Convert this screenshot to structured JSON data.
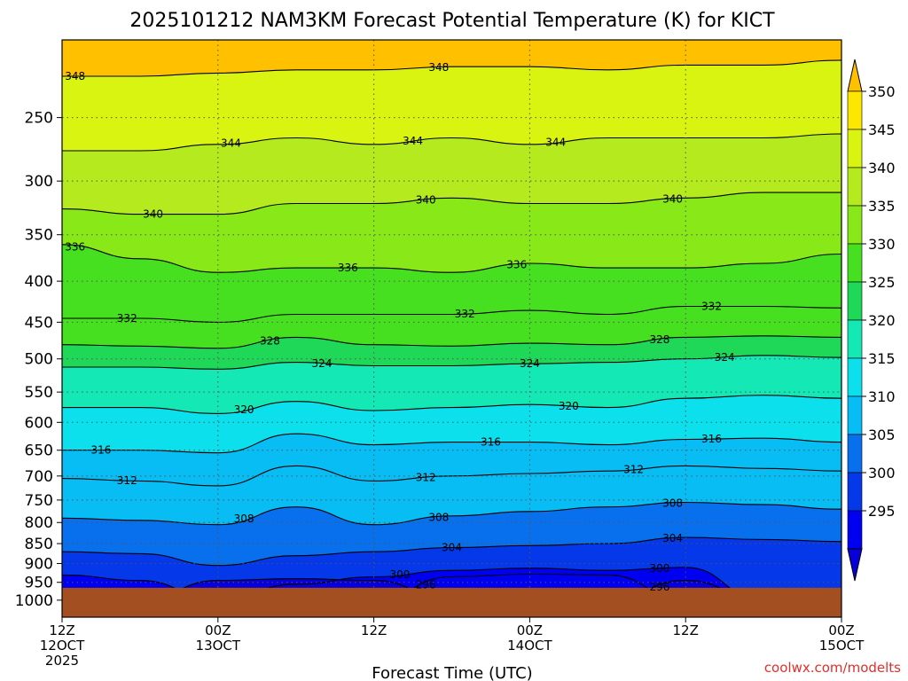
{
  "chart_data": {
    "type": "heatmap",
    "title": "2025101212 NAM3KM Forecast Potential Temperature (K) for KICT",
    "xlabel": "Forecast Time (UTC)",
    "ylabel": "",
    "credit": "coolwx.com/modelts",
    "y_axis": {
      "scale": "log-pressure",
      "reversed": true,
      "range_hPa": [
        200,
        1050
      ],
      "ticks": [
        "250",
        "300",
        "350",
        "400",
        "450",
        "500",
        "550",
        "600",
        "650",
        "700",
        "750",
        "800",
        "850",
        "900",
        "950",
        "1000"
      ],
      "tick_values": [
        250,
        300,
        350,
        400,
        450,
        500,
        550,
        600,
        650,
        700,
        750,
        800,
        850,
        900,
        950,
        1000
      ]
    },
    "x_axis": {
      "range_hours": [
        0,
        60
      ],
      "ticks": [
        {
          "hour": 0,
          "line1": "12Z",
          "line2": "12OCT",
          "line3": "2025"
        },
        {
          "hour": 12,
          "line1": "00Z",
          "line2": "13OCT",
          "line3": ""
        },
        {
          "hour": 24,
          "line1": "12Z",
          "line2": "",
          "line3": ""
        },
        {
          "hour": 36,
          "line1": "00Z",
          "line2": "14OCT",
          "line3": ""
        },
        {
          "hour": 48,
          "line1": "12Z",
          "line2": "",
          "line3": ""
        },
        {
          "hour": 60,
          "line1": "00Z",
          "line2": "15OCT",
          "line3": ""
        }
      ]
    },
    "colorbar": {
      "labels": [
        "350",
        "345",
        "340",
        "335",
        "330",
        "325",
        "320",
        "315",
        "310",
        "305",
        "300",
        "295"
      ],
      "levels": [
        350,
        345,
        340,
        335,
        330,
        325,
        320,
        315,
        310,
        305,
        300,
        295
      ],
      "colors": [
        "#fde600",
        "#d8f410",
        "#b4ea1e",
        "#88e818",
        "#46e020",
        "#20d858",
        "#14e8b4",
        "#0ce0ec",
        "#08bcf4",
        "#0870ec",
        "#0438e8",
        "#0000f0"
      ],
      "over_color": "#ffc000",
      "under_color": "#0800d8"
    },
    "surface_pressure_hPa": 965,
    "ground_color": "#a44f22",
    "contour_interval_K": 4,
    "contours": [
      {
        "value": 296,
        "p": [
          1000,
          1000,
          945,
          940,
          945,
          1000,
          1000,
          1000,
          945,
          1000,
          1000
        ],
        "label_hour": 46
      },
      {
        "value": 296,
        "p": [
          1000,
          1000,
          1000,
          1000,
          1000,
          935,
          928,
          930,
          1000,
          1000,
          1000
        ],
        "label_hour": 28
      },
      {
        "value": 300,
        "p": [
          930,
          945,
          1000,
          955,
          935,
          918,
          912,
          918,
          910,
          1000,
          1000
        ],
        "label_hour": 26
      },
      {
        "value": 300,
        "p": [
          930,
          945,
          1000,
          955,
          935,
          918,
          912,
          918,
          910,
          1000,
          1000
        ],
        "label_hour": 46
      },
      {
        "value": 304,
        "p": [
          870,
          875,
          905,
          880,
          870,
          860,
          855,
          850,
          835,
          840,
          845
        ],
        "label_hour": 30
      },
      {
        "value": 304,
        "p": [
          870,
          875,
          905,
          880,
          870,
          860,
          855,
          850,
          835,
          840,
          845
        ],
        "label_hour": 47
      },
      {
        "value": 308,
        "p": [
          790,
          795,
          805,
          765,
          805,
          785,
          775,
          765,
          755,
          760,
          770
        ],
        "label_hour": 14
      },
      {
        "value": 308,
        "p": [
          790,
          795,
          805,
          765,
          805,
          785,
          775,
          765,
          755,
          760,
          770
        ],
        "label_hour": 29
      },
      {
        "value": 308,
        "p": [
          790,
          795,
          805,
          765,
          805,
          785,
          775,
          765,
          755,
          760,
          770
        ],
        "label_hour": 47
      },
      {
        "value": 312,
        "p": [
          705,
          710,
          720,
          680,
          710,
          700,
          695,
          690,
          680,
          685,
          690
        ],
        "label_hour": 5
      },
      {
        "value": 312,
        "p": [
          705,
          710,
          720,
          680,
          710,
          700,
          695,
          690,
          680,
          685,
          690
        ],
        "label_hour": 28
      },
      {
        "value": 312,
        "p": [
          705,
          710,
          720,
          680,
          710,
          700,
          695,
          690,
          680,
          685,
          690
        ],
        "label_hour": 44
      },
      {
        "value": 316,
        "p": [
          650,
          650,
          655,
          620,
          640,
          635,
          635,
          640,
          630,
          628,
          635
        ],
        "label_hour": 3
      },
      {
        "value": 316,
        "p": [
          650,
          650,
          655,
          620,
          640,
          635,
          635,
          640,
          630,
          628,
          635
        ],
        "label_hour": 33
      },
      {
        "value": 316,
        "p": [
          650,
          650,
          655,
          620,
          640,
          635,
          635,
          640,
          630,
          628,
          635
        ],
        "label_hour": 50
      },
      {
        "value": 320,
        "p": [
          575,
          575,
          585,
          565,
          580,
          575,
          570,
          575,
          560,
          555,
          560
        ],
        "label_hour": 14
      },
      {
        "value": 320,
        "p": [
          575,
          575,
          585,
          565,
          580,
          575,
          570,
          575,
          560,
          555,
          560
        ],
        "label_hour": 39
      },
      {
        "value": 324,
        "p": [
          512,
          512,
          515,
          505,
          510,
          510,
          507,
          505,
          500,
          495,
          498
        ],
        "label_hour": 20
      },
      {
        "value": 324,
        "p": [
          512,
          512,
          515,
          505,
          510,
          510,
          507,
          505,
          500,
          495,
          498
        ],
        "label_hour": 36
      },
      {
        "value": 324,
        "p": [
          512,
          512,
          515,
          505,
          510,
          510,
          507,
          505,
          500,
          495,
          498
        ],
        "label_hour": 51
      },
      {
        "value": 328,
        "p": [
          480,
          482,
          485,
          470,
          480,
          482,
          478,
          480,
          470,
          468,
          470
        ],
        "label_hour": 16
      },
      {
        "value": 328,
        "p": [
          480,
          482,
          485,
          470,
          480,
          482,
          478,
          480,
          470,
          468,
          470
        ],
        "label_hour": 46
      },
      {
        "value": 332,
        "p": [
          445,
          445,
          450,
          440,
          440,
          440,
          435,
          440,
          430,
          430,
          432
        ],
        "label_hour": 5
      },
      {
        "value": 332,
        "p": [
          445,
          445,
          450,
          440,
          440,
          440,
          435,
          440,
          430,
          430,
          432
        ],
        "label_hour": 31
      },
      {
        "value": 332,
        "p": [
          445,
          445,
          450,
          440,
          440,
          440,
          435,
          440,
          430,
          430,
          432
        ],
        "label_hour": 50
      },
      {
        "value": 336,
        "p": [
          360,
          375,
          390,
          385,
          385,
          390,
          380,
          385,
          385,
          380,
          370
        ],
        "label_hour": 1
      },
      {
        "value": 336,
        "p": [
          360,
          375,
          390,
          385,
          385,
          390,
          380,
          385,
          385,
          380,
          370
        ],
        "label_hour": 22
      },
      {
        "value": 336,
        "p": [
          360,
          375,
          390,
          385,
          385,
          390,
          380,
          385,
          385,
          380,
          370
        ],
        "label_hour": 35
      },
      {
        "value": 340,
        "p": [
          325,
          330,
          330,
          320,
          320,
          315,
          320,
          320,
          315,
          310,
          310
        ],
        "label_hour": 7
      },
      {
        "value": 340,
        "p": [
          325,
          330,
          330,
          320,
          320,
          315,
          320,
          320,
          315,
          310,
          310
        ],
        "label_hour": 28
      },
      {
        "value": 340,
        "p": [
          325,
          330,
          330,
          320,
          320,
          315,
          320,
          320,
          315,
          310,
          310
        ],
        "label_hour": 47
      },
      {
        "value": 344,
        "p": [
          275,
          275,
          270,
          265,
          270,
          265,
          270,
          265,
          265,
          265,
          262
        ],
        "label_hour": 13
      },
      {
        "value": 344,
        "p": [
          275,
          275,
          270,
          265,
          270,
          265,
          270,
          265,
          265,
          265,
          262
        ],
        "label_hour": 27
      },
      {
        "value": 344,
        "p": [
          275,
          275,
          270,
          265,
          270,
          265,
          270,
          265,
          265,
          265,
          262
        ],
        "label_hour": 38
      },
      {
        "value": 348,
        "p": [
          222,
          222,
          220,
          218,
          218,
          216,
          216,
          218,
          215,
          215,
          212
        ],
        "label_hour": 1
      },
      {
        "value": 348,
        "p": [
          222,
          222,
          220,
          218,
          218,
          216,
          216,
          218,
          215,
          215,
          212
        ],
        "label_hour": 29
      }
    ]
  }
}
